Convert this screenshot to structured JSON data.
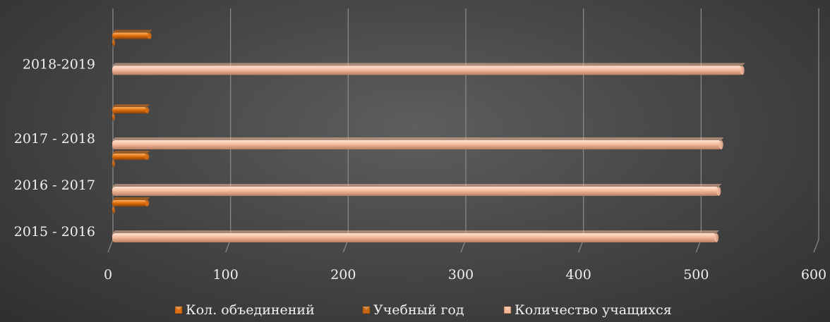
{
  "chart_data": {
    "type": "bar",
    "orientation": "horizontal",
    "categories": [
      "2015 - 2016",
      "2016 - 2017",
      "2017 - 2018",
      "2018-2019"
    ],
    "category_positions": [
      0,
      1,
      2,
      3.6
    ],
    "series": [
      {
        "name": "Кол. объединений",
        "values": [
          29,
          29,
          29,
          31
        ],
        "color": "#e0700f"
      },
      {
        "name": "Учебный год",
        "values": [
          1,
          1,
          1,
          1
        ],
        "color": "#c8650f"
      },
      {
        "name": "Количество учащихся",
        "values": [
          513,
          515,
          517,
          535
        ],
        "color": "#f4b99b"
      }
    ],
    "x_ticks": [
      "0",
      "100",
      "200",
      "300",
      "400",
      "500",
      "600"
    ],
    "xlim": [
      0,
      600
    ],
    "grid": true,
    "legend": "bottom",
    "title": "",
    "xlabel": "",
    "ylabel": ""
  }
}
